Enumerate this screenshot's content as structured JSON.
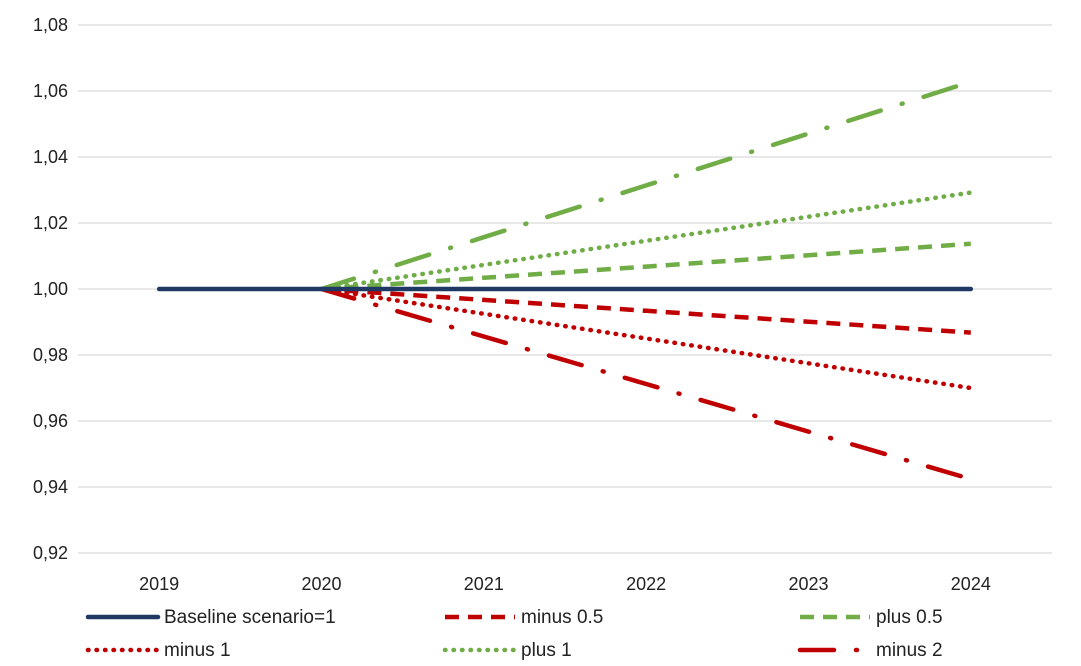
{
  "chart_data": {
    "type": "line",
    "title": "",
    "xlabel": "",
    "ylabel": "",
    "x": [
      "2019",
      "2020",
      "2021",
      "2022",
      "2023",
      "2024"
    ],
    "ylim": [
      0.92,
      1.08
    ],
    "yticks": [
      "0,92",
      "0,94",
      "0,96",
      "0,98",
      "1,00",
      "1,02",
      "1,04",
      "1,06",
      "1,08"
    ],
    "grid": true,
    "legend_position": "bottom",
    "series": [
      {
        "name": "Baseline scenario=1",
        "color": "#1f3864",
        "style": "solid",
        "values": [
          1.0,
          1.0,
          1.0,
          1.0,
          1.0,
          1.0
        ]
      },
      {
        "name": "minus 0.5",
        "color": "#c00000",
        "style": "dash",
        "values": [
          null,
          1.0,
          0.9967,
          0.9934,
          0.9901,
          0.9868
        ]
      },
      {
        "name": "plus 0.5",
        "color": "#70ad47",
        "style": "dash",
        "values": [
          null,
          1.0,
          1.0034,
          1.0068,
          1.0102,
          1.0137
        ]
      },
      {
        "name": "minus 1",
        "color": "#c00000",
        "style": "dot",
        "values": [
          null,
          1.0,
          0.9925,
          0.985,
          0.9775,
          0.97
        ]
      },
      {
        "name": "plus 1",
        "color": "#70ad47",
        "style": "dot",
        "values": [
          null,
          1.0,
          1.0073,
          1.0146,
          1.0219,
          1.0292
        ]
      },
      {
        "name": "minus 2",
        "color": "#c00000",
        "style": "dashdot",
        "values": [
          null,
          1.0,
          0.9856,
          0.9712,
          0.9568,
          0.9424
        ]
      },
      {
        "name": "",
        "color": "#70ad47",
        "style": "dashdot",
        "values": [
          null,
          1.0,
          1.0157,
          1.0314,
          1.0471,
          1.0628
        ]
      }
    ]
  }
}
